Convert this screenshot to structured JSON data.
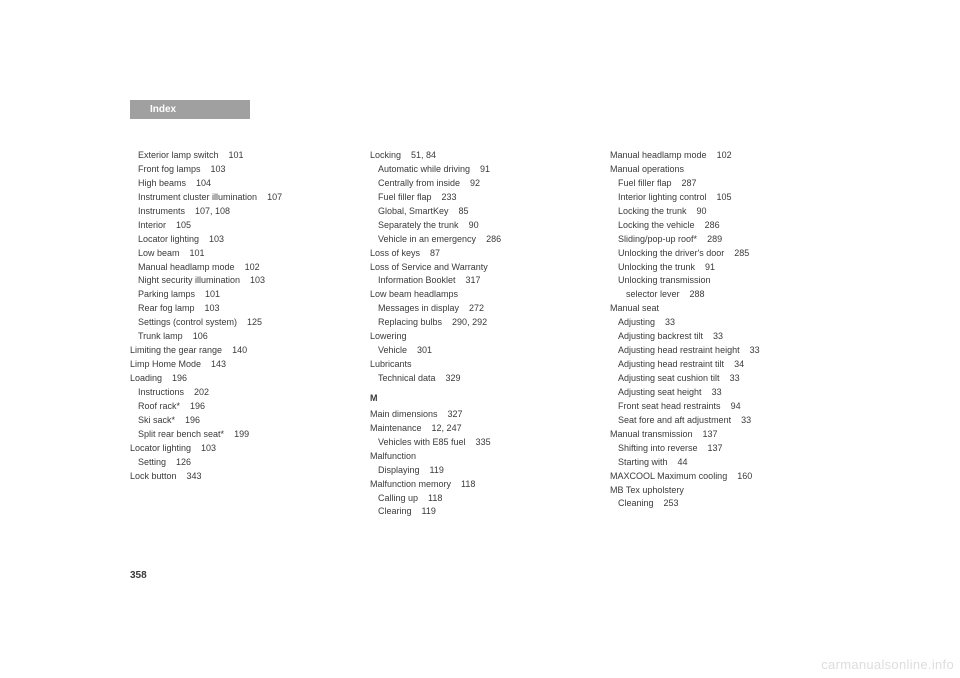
{
  "header": {
    "title": "Index"
  },
  "pageNumber": "358",
  "watermark": "carmanualsonline.info",
  "columns": [
    {
      "entries": [
        {
          "level": 1,
          "text": "Exterior lamp switch",
          "pages": "101"
        },
        {
          "level": 1,
          "text": "Front fog lamps",
          "pages": "103"
        },
        {
          "level": 1,
          "text": "High beams",
          "pages": "104"
        },
        {
          "level": 1,
          "text": "Instrument cluster illumination",
          "pages": "107"
        },
        {
          "level": 1,
          "text": "Instruments",
          "pages": "107, 108"
        },
        {
          "level": 1,
          "text": "Interior",
          "pages": "105"
        },
        {
          "level": 1,
          "text": "Locator lighting",
          "pages": "103"
        },
        {
          "level": 1,
          "text": "Low beam",
          "pages": "101"
        },
        {
          "level": 1,
          "text": "Manual headlamp mode",
          "pages": "102"
        },
        {
          "level": 1,
          "text": "Night security illumination",
          "pages": "103"
        },
        {
          "level": 1,
          "text": "Parking lamps",
          "pages": "101"
        },
        {
          "level": 1,
          "text": "Rear fog lamp",
          "pages": "103"
        },
        {
          "level": 1,
          "text": "Settings (control system)",
          "pages": "125"
        },
        {
          "level": 1,
          "text": "Trunk lamp",
          "pages": "106"
        },
        {
          "level": 0,
          "text": "Limiting the gear range",
          "pages": "140"
        },
        {
          "level": 0,
          "text": "Limp Home Mode",
          "pages": "143"
        },
        {
          "level": 0,
          "text": "Loading",
          "pages": "196"
        },
        {
          "level": 1,
          "text": "Instructions",
          "pages": "202"
        },
        {
          "level": 1,
          "text": "Roof rack*",
          "pages": "196"
        },
        {
          "level": 1,
          "text": "Ski sack*",
          "pages": "196"
        },
        {
          "level": 1,
          "text": "Split rear bench seat*",
          "pages": "199"
        },
        {
          "level": 0,
          "text": "Locator lighting",
          "pages": "103"
        },
        {
          "level": 1,
          "text": "Setting",
          "pages": "126"
        },
        {
          "level": 0,
          "text": "Lock button",
          "pages": "343"
        }
      ]
    },
    {
      "entries": [
        {
          "level": 0,
          "text": "Locking",
          "pages": "51, 84"
        },
        {
          "level": 1,
          "text": "Automatic while driving",
          "pages": "91"
        },
        {
          "level": 1,
          "text": "Centrally from inside",
          "pages": "92"
        },
        {
          "level": 1,
          "text": "Fuel filler flap",
          "pages": "233"
        },
        {
          "level": 1,
          "text": "Global, SmartKey",
          "pages": "85"
        },
        {
          "level": 1,
          "text": "Separately the trunk",
          "pages": "90"
        },
        {
          "level": 1,
          "text": "Vehicle in an emergency",
          "pages": "286"
        },
        {
          "level": 0,
          "text": "Loss of keys",
          "pages": "87"
        },
        {
          "level": 0,
          "text": "Loss of Service and Warranty",
          "pages": ""
        },
        {
          "level": 1,
          "text": "Information Booklet",
          "pages": "317"
        },
        {
          "level": 0,
          "text": "Low beam headlamps",
          "pages": ""
        },
        {
          "level": 1,
          "text": "Messages in display",
          "pages": "272"
        },
        {
          "level": 1,
          "text": "Replacing bulbs",
          "pages": "290, 292"
        },
        {
          "level": 0,
          "text": "Lowering",
          "pages": ""
        },
        {
          "level": 1,
          "text": "Vehicle",
          "pages": "301"
        },
        {
          "level": 0,
          "text": "Lubricants",
          "pages": ""
        },
        {
          "level": 1,
          "text": "Technical data",
          "pages": "329"
        },
        {
          "level": 0,
          "section": true,
          "text": "M",
          "pages": ""
        },
        {
          "level": 0,
          "text": "Main dimensions",
          "pages": "327"
        },
        {
          "level": 0,
          "text": "Maintenance",
          "pages": "12, 247"
        },
        {
          "level": 1,
          "text": "Vehicles with E85 fuel",
          "pages": "335"
        },
        {
          "level": 0,
          "text": "Malfunction",
          "pages": ""
        },
        {
          "level": 1,
          "text": "Displaying",
          "pages": "119"
        },
        {
          "level": 0,
          "text": "Malfunction memory",
          "pages": "118"
        },
        {
          "level": 1,
          "text": "Calling up",
          "pages": "118"
        },
        {
          "level": 1,
          "text": "Clearing",
          "pages": "119"
        }
      ]
    },
    {
      "entries": [
        {
          "level": 0,
          "text": "Manual headlamp mode",
          "pages": "102"
        },
        {
          "level": 0,
          "text": "Manual operations",
          "pages": ""
        },
        {
          "level": 1,
          "text": "Fuel filler flap",
          "pages": "287"
        },
        {
          "level": 1,
          "text": "Interior lighting control",
          "pages": "105"
        },
        {
          "level": 1,
          "text": "Locking the trunk",
          "pages": "90"
        },
        {
          "level": 1,
          "text": "Locking the vehicle",
          "pages": "286"
        },
        {
          "level": 1,
          "text": "Sliding/pop-up roof*",
          "pages": "289"
        },
        {
          "level": 1,
          "text": "Unlocking the driver's door",
          "pages": "285"
        },
        {
          "level": 1,
          "text": "Unlocking the trunk",
          "pages": "91"
        },
        {
          "level": 1,
          "text": "Unlocking transmission",
          "pages": ""
        },
        {
          "level": 2,
          "text": "selector lever",
          "pages": "288"
        },
        {
          "level": 0,
          "text": "Manual seat",
          "pages": ""
        },
        {
          "level": 1,
          "text": "Adjusting",
          "pages": "33"
        },
        {
          "level": 1,
          "text": "Adjusting backrest tilt",
          "pages": "33"
        },
        {
          "level": 1,
          "text": "Adjusting head restraint height",
          "pages": "33"
        },
        {
          "level": 1,
          "text": "Adjusting head restraint tilt",
          "pages": "34"
        },
        {
          "level": 1,
          "text": "Adjusting seat cushion tilt",
          "pages": "33"
        },
        {
          "level": 1,
          "text": "Adjusting seat height",
          "pages": "33"
        },
        {
          "level": 1,
          "text": "Front seat head restraints",
          "pages": "94"
        },
        {
          "level": 1,
          "text": "Seat fore and aft adjustment",
          "pages": "33"
        },
        {
          "level": 0,
          "text": "Manual transmission",
          "pages": "137"
        },
        {
          "level": 1,
          "text": "Shifting into reverse",
          "pages": "137"
        },
        {
          "level": 1,
          "text": "Starting with",
          "pages": "44"
        },
        {
          "level": 0,
          "text": "MAXCOOL Maximum cooling",
          "pages": "160"
        },
        {
          "level": 0,
          "text": "MB Tex upholstery",
          "pages": ""
        },
        {
          "level": 1,
          "text": "Cleaning",
          "pages": "253"
        }
      ]
    }
  ]
}
